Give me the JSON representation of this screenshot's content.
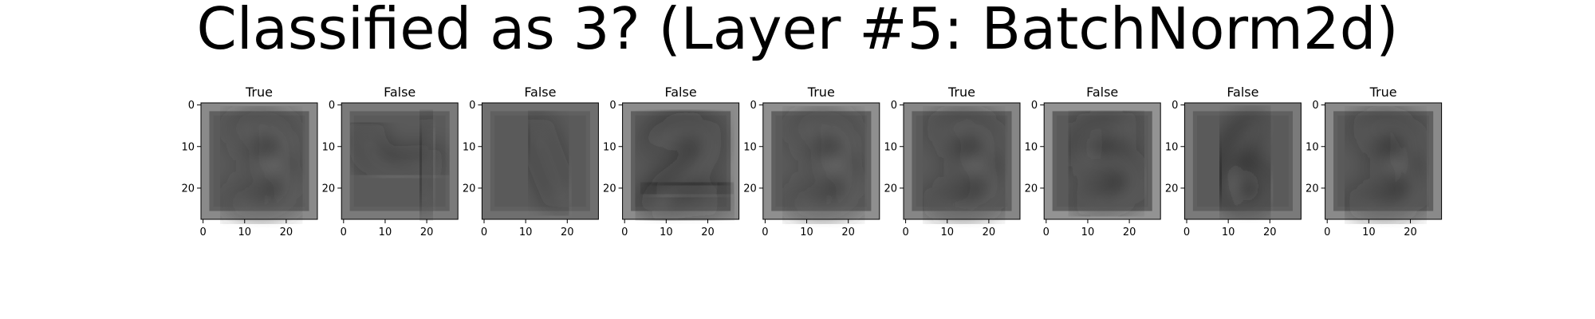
{
  "title": "Classified as 3? (Layer #5: BatchNorm2d)",
  "chart_data": {
    "type": "image-grid",
    "title": "Classified as 3? (Layer #5: BatchNorm2d)",
    "panels": [
      {
        "label": "True",
        "digit": "3",
        "dark": "#2a2a2a",
        "light": "#8a8a8a"
      },
      {
        "label": "False",
        "digit": "4",
        "dark": "#1e1e1e",
        "light": "#7a7a7a"
      },
      {
        "label": "False",
        "digit": "1",
        "dark": "#1a1a1a",
        "light": "#6f6f6f"
      },
      {
        "label": "False",
        "digit": "2",
        "dark": "#151515",
        "light": "#8c8c8c"
      },
      {
        "label": "True",
        "digit": "3",
        "dark": "#2b2b2b",
        "light": "#8f8f8f"
      },
      {
        "label": "True",
        "digit": "3",
        "dark": "#202020",
        "light": "#868686"
      },
      {
        "label": "False",
        "digit": "5",
        "dark": "#1c1c1c",
        "light": "#939393"
      },
      {
        "label": "False",
        "digit": "6",
        "dark": "#0c0c0c",
        "light": "#7a7a7a"
      },
      {
        "label": "True",
        "digit": "3",
        "dark": "#1f1f1f",
        "light": "#8a8a8a"
      }
    ],
    "x_ticks": [
      "0",
      "10",
      "20"
    ],
    "y_ticks": [
      "0",
      "10",
      "20"
    ],
    "xlim": [
      -0.5,
      27.5
    ],
    "ylim": [
      27.5,
      -0.5
    ],
    "colormap": "gray"
  }
}
